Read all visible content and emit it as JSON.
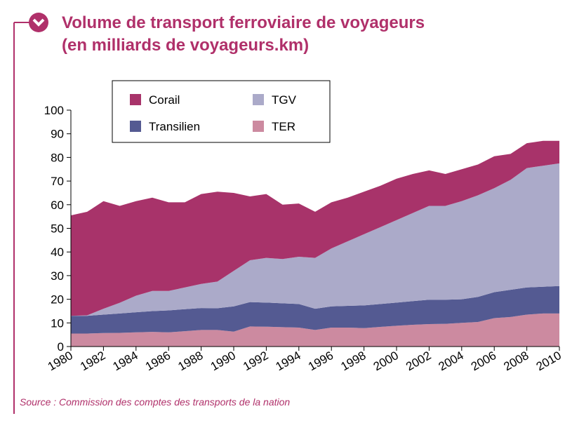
{
  "chart_data": {
    "type": "stacked-area",
    "title": "Volume de transport ferroviaire de voyageurs",
    "subtitle": "(en milliards de voyageurs.km)",
    "source": "Source : Commission des comptes des transports de la nation",
    "x": [
      1980,
      1981,
      1982,
      1983,
      1984,
      1985,
      1986,
      1987,
      1988,
      1989,
      1990,
      1991,
      1992,
      1993,
      1994,
      1995,
      1996,
      1997,
      1998,
      1999,
      2000,
      2001,
      2002,
      2003,
      2004,
      2005,
      2006,
      2007,
      2008,
      2009,
      2010
    ],
    "xlim": [
      1980,
      2010
    ],
    "xticks": [
      1980,
      1982,
      1984,
      1986,
      1988,
      1990,
      1992,
      1994,
      1996,
      1998,
      2000,
      2002,
      2004,
      2006,
      2008,
      2010
    ],
    "ylim": [
      0,
      100
    ],
    "yticks": [
      0,
      10,
      20,
      30,
      40,
      50,
      60,
      70,
      80,
      90,
      100
    ],
    "series": [
      {
        "name": "TER",
        "color": "#cc8aa0",
        "values": [
          5.5,
          5.5,
          5.7,
          5.8,
          6,
          6.2,
          6,
          6.5,
          7,
          7,
          6.3,
          8.5,
          8.4,
          8.2,
          8,
          7,
          8,
          8,
          7.8,
          8.3,
          8.8,
          9.2,
          9.5,
          9.6,
          10,
          10.4,
          12,
          12.5,
          13.5,
          14,
          14
        ]
      },
      {
        "name": "Transilien",
        "color": "#545a92",
        "values": [
          7.5,
          7.5,
          7.8,
          8.2,
          8.5,
          8.8,
          9.3,
          9.3,
          9.3,
          9.2,
          10.7,
          10.3,
          10.2,
          10.1,
          10,
          9,
          9,
          9.2,
          9.6,
          9.7,
          9.8,
          10,
          10.3,
          10.2,
          10,
          10.6,
          11,
          11.5,
          11.5,
          11.3,
          11.6
        ]
      },
      {
        "name": "TGV",
        "color": "#abaac9",
        "values": [
          0,
          0.2,
          2.5,
          4.5,
          7,
          8.5,
          8.2,
          9.2,
          10.2,
          11.3,
          15,
          17.7,
          18.9,
          18.7,
          20,
          21.5,
          24.5,
          27.3,
          30.1,
          32.5,
          34.9,
          37.3,
          39.7,
          39.7,
          41.5,
          43,
          44,
          46.5,
          50.5,
          51.2,
          51.9
        ]
      },
      {
        "name": "Corail",
        "color": "#a8336a",
        "values": [
          42.5,
          43.8,
          45.5,
          41,
          40,
          39.5,
          37.5,
          36,
          38,
          38,
          33,
          27,
          27,
          23,
          22.5,
          19.5,
          19.5,
          18.5,
          18,
          17.5,
          17.5,
          16.5,
          15,
          13.5,
          13.5,
          13,
          13.5,
          11,
          10.5,
          10.5,
          9.5
        ]
      }
    ]
  }
}
